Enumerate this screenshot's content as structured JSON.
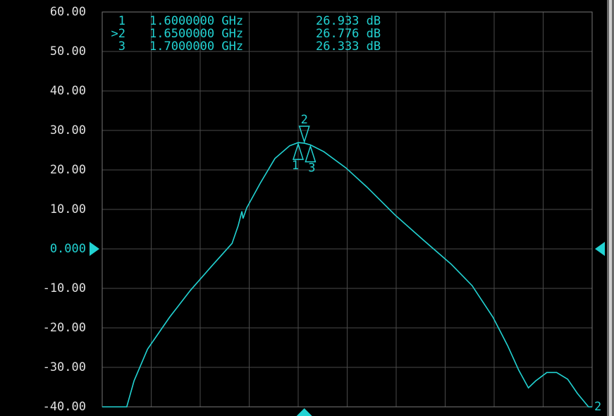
{
  "chart_data": {
    "type": "line",
    "x": [
      0,
      0.2,
      0.26,
      0.37,
      0.55,
      0.72,
      0.89,
      1.06,
      1.11,
      1.14,
      1.15,
      1.18,
      1.29,
      1.41,
      1.53,
      1.6,
      1.65,
      1.7,
      1.81,
      1.99,
      2.16,
      2.39,
      2.62,
      2.85,
      3.02,
      3.19,
      3.31,
      3.4,
      3.48,
      3.54,
      3.63,
      3.71,
      3.8,
      3.88,
      3.97,
      4
    ],
    "series": [
      {
        "name": "2",
        "color": "#22d3d3",
        "values": [
          -40,
          -40,
          -33.4,
          -25.4,
          -17.3,
          -10.5,
          -4.5,
          1.4,
          5.9,
          9.5,
          7.7,
          10.4,
          16.6,
          22.9,
          26.1,
          26.933,
          26.776,
          26.333,
          24.6,
          20.5,
          15.7,
          8.6,
          2.3,
          -3.9,
          -9.3,
          -17.3,
          -24.5,
          -30.7,
          -35.2,
          -33.4,
          -31.3,
          -31.3,
          -33,
          -36.6,
          -40,
          -40
        ]
      }
    ],
    "xlim": [
      0,
      4
    ],
    "xticks": [
      0,
      0.4,
      0.8,
      1.2,
      1.6,
      2,
      2.4,
      2.8,
      3.2,
      3.6,
      4
    ],
    "ylim": [
      -40,
      60
    ],
    "yticks": [
      {
        "value": 60,
        "label": "60.00"
      },
      {
        "value": 50,
        "label": "50.00"
      },
      {
        "value": 40,
        "label": "40.00"
      },
      {
        "value": 30,
        "label": "30.00"
      },
      {
        "value": 20,
        "label": "20.00"
      },
      {
        "value": 10,
        "label": "10.00"
      },
      {
        "value": 0,
        "label": "0.000"
      },
      {
        "value": -10,
        "label": "-10.00"
      },
      {
        "value": -20,
        "label": "-20.00"
      },
      {
        "value": -30,
        "label": "-30.00"
      },
      {
        "value": -40,
        "label": "-40.00"
      }
    ],
    "reference_value": 0,
    "grid": true,
    "markers": [
      {
        "name": "1",
        "table_label": "1",
        "x": 1.6,
        "x_label": "1.6000000 GHz",
        "value": 26.933,
        "value_label": "26.933 dB"
      },
      {
        "name": "2",
        "table_label": ">2",
        "x": 1.65,
        "x_label": "1.6500000 GHz",
        "value": 26.776,
        "value_label": "26.776 dB"
      },
      {
        "name": "3",
        "table_label": "3",
        "x": 1.7,
        "x_label": "1.7000000 GHz",
        "value": 26.333,
        "value_label": "26.333 dB"
      }
    ],
    "active_marker": 1
  }
}
